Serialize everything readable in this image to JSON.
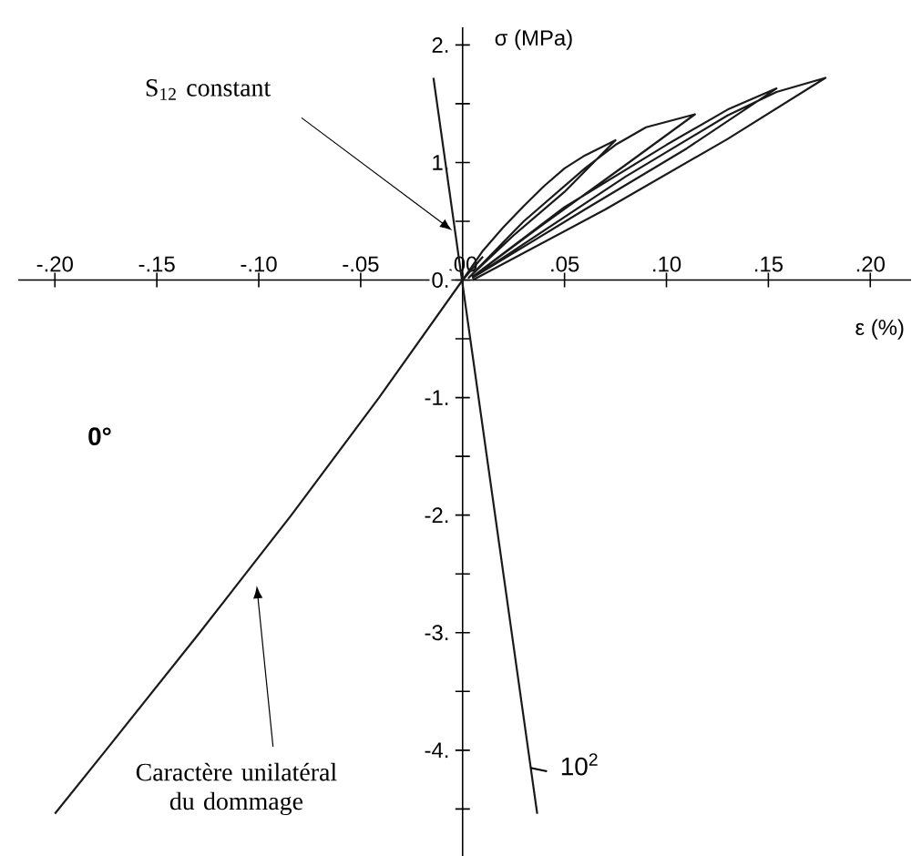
{
  "chart_data": {
    "type": "line",
    "xlabel": "ε (%)",
    "ylabel": "σ (MPa)",
    "xlim": [
      -0.218,
      0.22
    ],
    "ylim": [
      -4.9,
      2.15
    ],
    "xticks": [
      {
        "value": -0.2,
        "label": "-.20"
      },
      {
        "value": -0.15,
        "label": "-.15"
      },
      {
        "value": -0.1,
        "label": "-.10"
      },
      {
        "value": -0.05,
        "label": "-.05"
      },
      {
        "value": 0,
        "label": ".00"
      },
      {
        "value": 0.05,
        "label": ".05"
      },
      {
        "value": 0.1,
        "label": ".10"
      },
      {
        "value": 0.15,
        "label": ".15"
      },
      {
        "value": 0.2,
        "label": ".20"
      }
    ],
    "yticks": [
      {
        "value": -4.5,
        "label": null
      },
      {
        "value": -4,
        "label": "-4."
      },
      {
        "value": -3.5,
        "label": null
      },
      {
        "value": -3,
        "label": "-3."
      },
      {
        "value": -2.5,
        "label": null
      },
      {
        "value": -2,
        "label": "-2."
      },
      {
        "value": -1.5,
        "label": null
      },
      {
        "value": -1,
        "label": "-1."
      },
      {
        "value": -0.5,
        "label": null
      },
      {
        "value": 0,
        "label": "0."
      },
      {
        "value": 0.5,
        "label": null
      },
      {
        "value": 1,
        "label": "1."
      },
      {
        "value": 1.5,
        "label": null
      },
      {
        "value": 2,
        "label": "2."
      }
    ],
    "series": [
      {
        "color": "#1a1a1a",
        "x": [
          0,
          0.01,
          0.02,
          0.03,
          0.04,
          0.05,
          0.06,
          0.075,
          0.05,
          0.025,
          0.003,
          0.03,
          0.06,
          0.075,
          0.09,
          0.114,
          0.08,
          0.04,
          0.005,
          0.05,
          0.1,
          0.13,
          0.154,
          0.11,
          0.06,
          0.005,
          0.08,
          0.13,
          0.154,
          0.178,
          0.13,
          0.07,
          0.005
        ],
        "values": [
          0,
          0.25,
          0.45,
          0.63,
          0.8,
          0.95,
          1.06,
          1.19,
          0.75,
          0.38,
          0.02,
          0.5,
          0.95,
          1.15,
          1.3,
          1.41,
          0.98,
          0.48,
          0.03,
          0.62,
          1.15,
          1.45,
          1.63,
          1.12,
          0.6,
          0.02,
          0.88,
          1.4,
          1.6,
          1.72,
          1.2,
          0.6,
          0
        ]
      },
      {
        "color": "#1a1a1a",
        "x": [
          0.01,
          0,
          -0.041,
          -0.084,
          -0.129,
          -0.175,
          -0.2
        ],
        "values": [
          0.2,
          0,
          -1,
          -2,
          -3,
          -4,
          -4.54
        ]
      },
      {
        "color": "#1a1a1a",
        "x": [
          -0.0143,
          0.0366
        ],
        "values": [
          1.72,
          -4.54
        ]
      }
    ],
    "annotations": [
      "S$_{12}$ constant",
      "Caractère unilatéral du dommage",
      "0°",
      {
        "text": "10$^{2}$",
        "x": 0.0334,
        "y": -4.15
      }
    ]
  }
}
